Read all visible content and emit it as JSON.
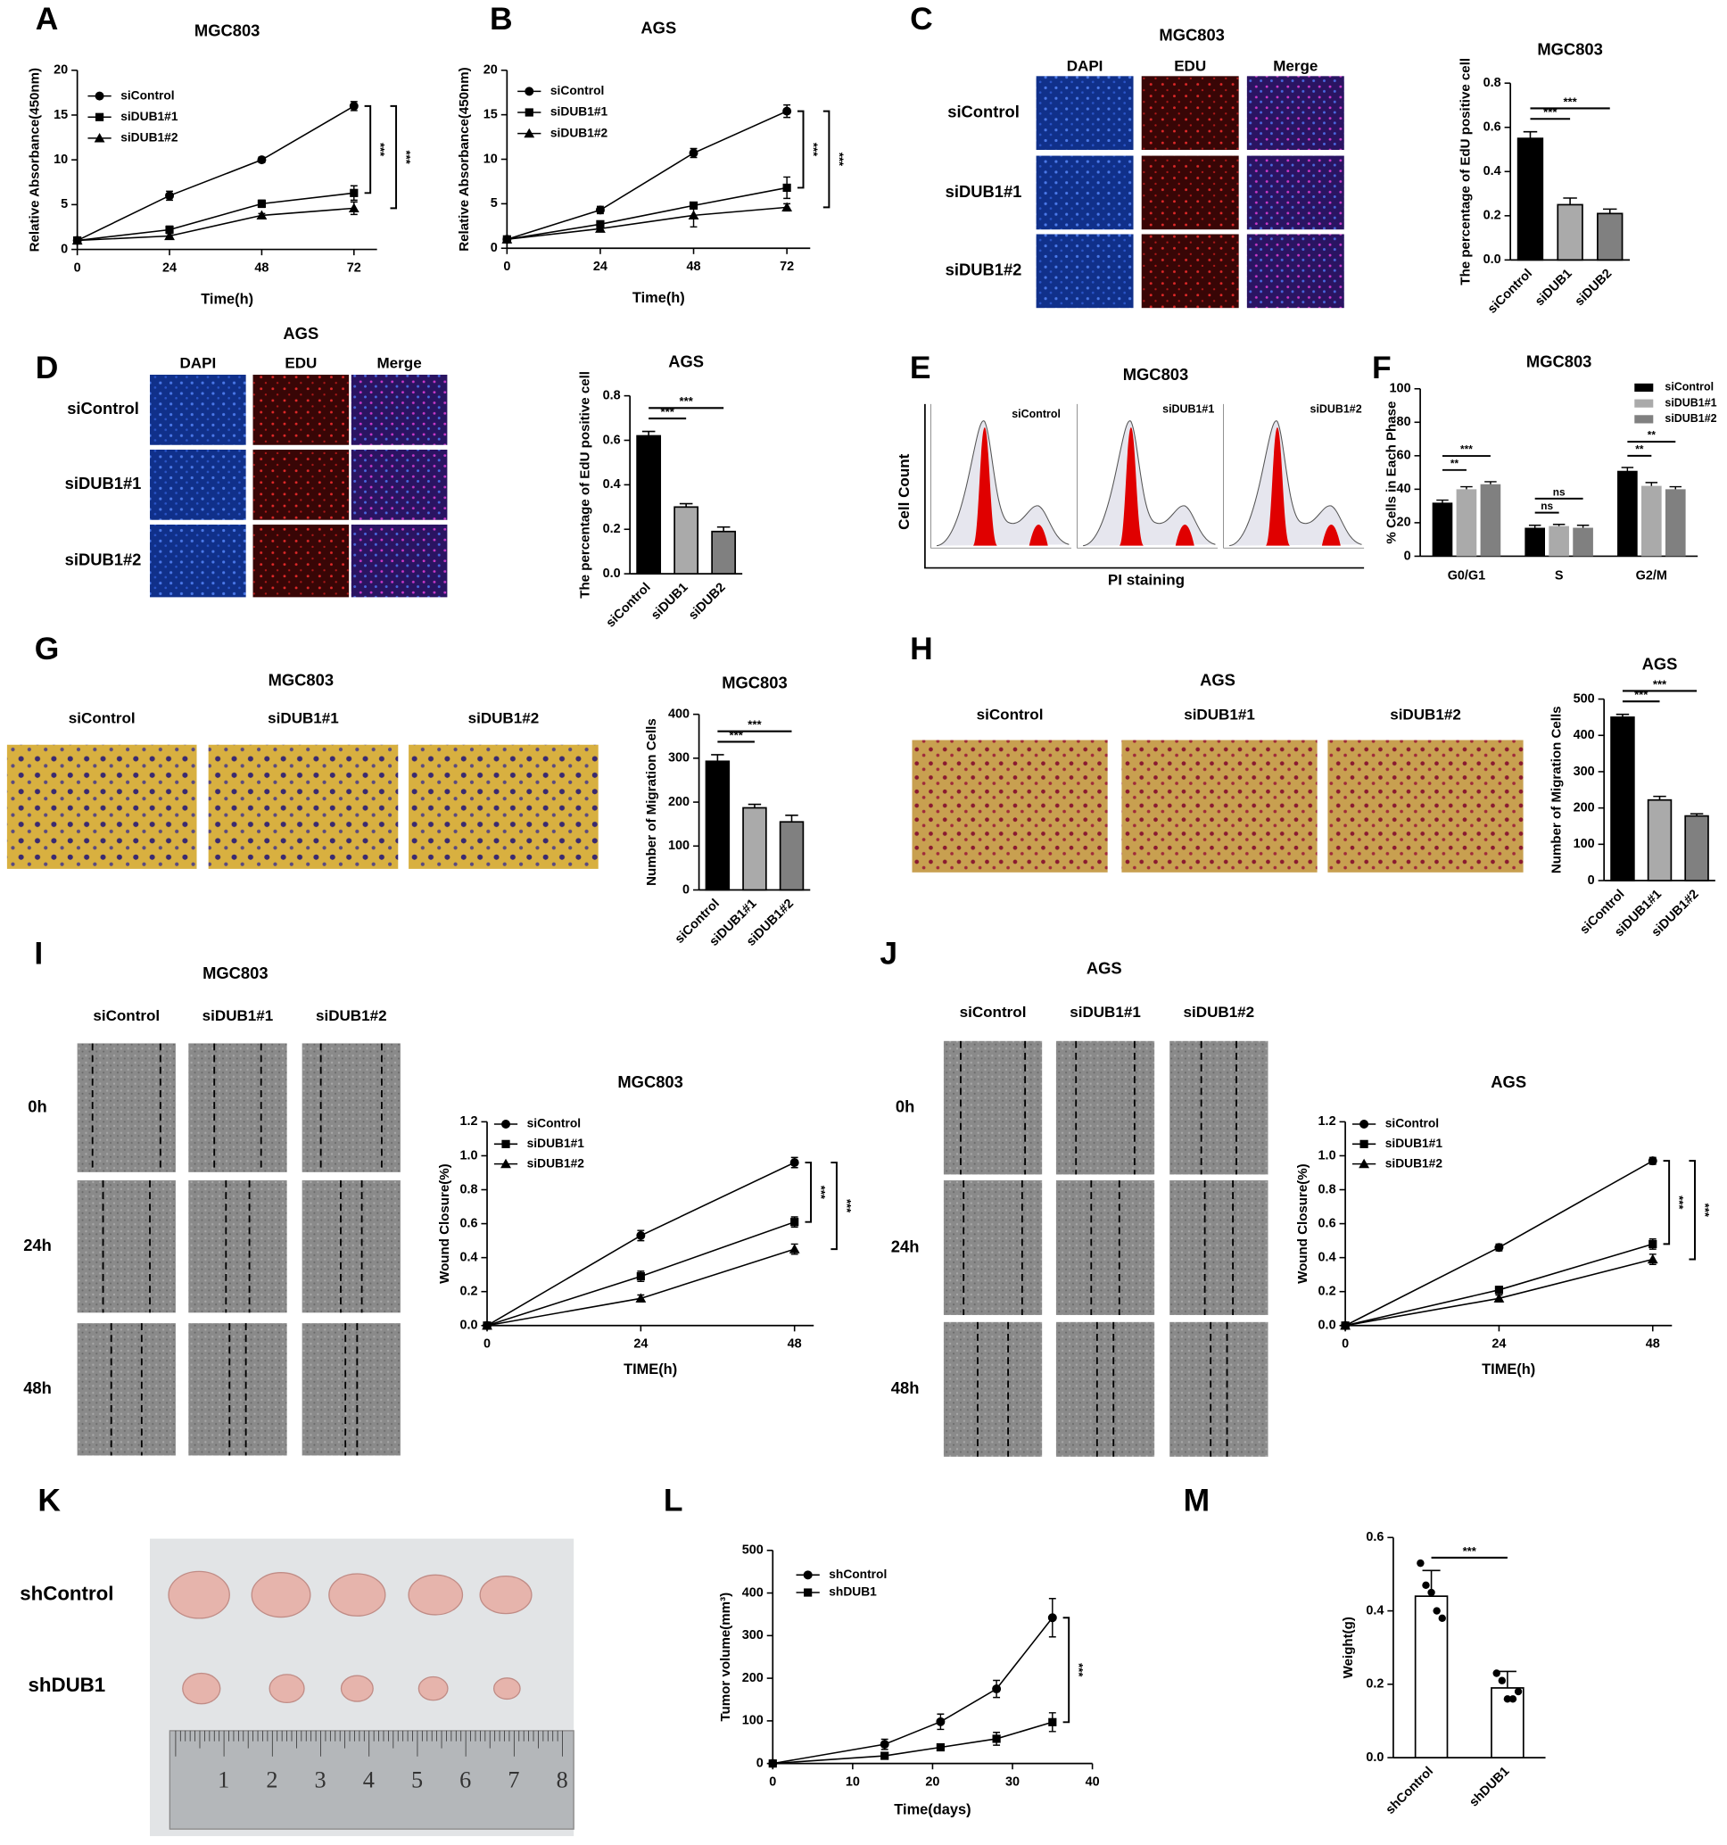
{
  "chart_data": [
    {
      "type": "line",
      "panel_label": "A",
      "title": "MGC803",
      "xlabel": "Time(h)",
      "ylabel": "Relative Absorbance(450nm)",
      "x": [
        0,
        24,
        48,
        72
      ],
      "xlim": [
        0,
        78
      ],
      "xticks": [
        0,
        24,
        48,
        72
      ],
      "ylim": [
        0,
        20
      ],
      "yticks": [
        0,
        5,
        10,
        15,
        20
      ],
      "series": [
        {
          "name": "siControl",
          "color": "#000000",
          "marker": "circle",
          "values": [
            1,
            6,
            10,
            16
          ],
          "errors": [
            0.1,
            0.5,
            0.3,
            0.5
          ]
        },
        {
          "name": "siDUB1#1",
          "color": "#000000",
          "marker": "square",
          "values": [
            1,
            2.2,
            5.1,
            6.3
          ],
          "errors": [
            0.1,
            0.4,
            0.4,
            0.8
          ]
        },
        {
          "name": "siDUB1#2",
          "color": "#000000",
          "marker": "triangle",
          "values": [
            1,
            1.5,
            3.8,
            4.6
          ],
          "errors": [
            0.1,
            0.3,
            0.2,
            0.7
          ]
        }
      ],
      "annotations": [
        "***",
        "***"
      ]
    },
    {
      "type": "line",
      "panel_label": "B",
      "title": "AGS",
      "xlabel": "Time(h)",
      "ylabel": "Relative Absorbance(450nm)",
      "x": [
        0,
        24,
        48,
        72
      ],
      "xlim": [
        0,
        78
      ],
      "xticks": [
        0,
        24,
        48,
        72
      ],
      "ylim": [
        0,
        20
      ],
      "yticks": [
        0,
        5,
        10,
        15,
        20
      ],
      "series": [
        {
          "name": "siControl",
          "color": "#000000",
          "marker": "circle",
          "values": [
            1,
            4.3,
            10.7,
            15.4
          ],
          "errors": [
            0.1,
            0.4,
            0.5,
            0.7
          ]
        },
        {
          "name": "siDUB1#1",
          "color": "#000000",
          "marker": "square",
          "values": [
            1,
            2.7,
            4.8,
            6.8
          ],
          "errors": [
            0.1,
            0.3,
            0.3,
            1.2
          ]
        },
        {
          "name": "siDUB1#2",
          "color": "#000000",
          "marker": "triangle",
          "values": [
            1,
            2.2,
            3.7,
            4.6
          ],
          "errors": [
            0.1,
            0.3,
            1.3,
            0.4
          ]
        }
      ],
      "annotations": [
        "***",
        "***"
      ]
    },
    {
      "type": "bar",
      "title": "MGC803",
      "ylabel": "The percentage of EdU positive cell",
      "categories": [
        "siControl",
        "siDUB1",
        "siDUB2"
      ],
      "values": [
        0.55,
        0.25,
        0.21
      ],
      "errors": [
        0.03,
        0.03,
        0.02
      ],
      "colors": [
        "#000000",
        "#aaaaaa",
        "#808080"
      ],
      "ylim": [
        0,
        0.8
      ],
      "yticks": [
        {
          "value": 0,
          "label": "0.0"
        },
        0.2,
        0.4,
        0.6,
        0.8
      ],
      "annotations": [
        "***",
        "***"
      ]
    },
    {
      "type": "bar",
      "title": "AGS",
      "ylabel": "The percentage of EdU positive cell",
      "categories": [
        "siControl",
        "siDUB1",
        "siDUB2"
      ],
      "values": [
        0.62,
        0.3,
        0.19
      ],
      "errors": [
        0.02,
        0.015,
        0.02
      ],
      "colors": [
        "#000000",
        "#aaaaaa",
        "#808080"
      ],
      "ylim": [
        0,
        0.8
      ],
      "yticks": [
        {
          "value": 0,
          "label": "0.0"
        },
        0.2,
        0.4,
        0.6,
        0.8
      ],
      "annotations": [
        "***",
        "***"
      ]
    },
    {
      "type": "grouped_bar",
      "panel_label": "F",
      "title": "MGC803",
      "ylabel": "% Cells in Each Phase",
      "categories": [
        "G0/G1",
        "S",
        "G2/M"
      ],
      "series": [
        {
          "name": "siControl",
          "color": "#000000",
          "values": [
            32,
            17,
            51
          ],
          "errors": [
            1.5,
            1.5,
            2
          ]
        },
        {
          "name": "siDUB1#1",
          "color": "#aaaaaa",
          "values": [
            40,
            18,
            42
          ],
          "errors": [
            1.5,
            1,
            2
          ]
        },
        {
          "name": "siDUB1#2",
          "color": "#808080",
          "values": [
            43,
            17,
            40
          ],
          "errors": [
            1.5,
            1.5,
            1.5
          ]
        }
      ],
      "ylim": [
        0,
        100
      ],
      "yticks": [
        0,
        20,
        40,
        60,
        80,
        100
      ],
      "annotations": [
        "**",
        "***",
        "ns",
        "ns",
        "**",
        "**"
      ]
    },
    {
      "type": "bar",
      "title": "MGC803",
      "ylabel": "Number of Migration Cells",
      "categories": [
        "siControl",
        "siDUB1#1",
        "siDUB1#2"
      ],
      "values": [
        293,
        187,
        155
      ],
      "errors": [
        15,
        8,
        15
      ],
      "colors": [
        "#000000",
        "#aaaaaa",
        "#808080"
      ],
      "ylim": [
        0,
        400
      ],
      "yticks": [
        0,
        100,
        200,
        300,
        400
      ],
      "annotations": [
        "***",
        "***"
      ]
    },
    {
      "type": "bar",
      "title": "AGS",
      "ylabel": "Number of Migration Cells",
      "categories": [
        "siControl",
        "siDUB1#1",
        "siDUB1#2"
      ],
      "values": [
        450,
        222,
        178
      ],
      "errors": [
        8,
        10,
        6
      ],
      "colors": [
        "#000000",
        "#aaaaaa",
        "#808080"
      ],
      "ylim": [
        0,
        500
      ],
      "yticks": [
        0,
        100,
        200,
        300,
        400,
        500
      ],
      "annotations": [
        "***",
        "***"
      ]
    },
    {
      "type": "line",
      "title": "MGC803",
      "xlabel": "TIME(h)",
      "ylabel": "Wound Closure(%)",
      "x": [
        0,
        24,
        48
      ],
      "xlim": [
        0,
        51
      ],
      "xticks": [
        0,
        24,
        48
      ],
      "ylim": [
        0,
        1.2
      ],
      "yticks": [
        {
          "value": 0,
          "label": "0.0"
        },
        0.2,
        0.4,
        0.6,
        0.8,
        {
          "value": 1,
          "label": "1.0"
        },
        1.2
      ],
      "series": [
        {
          "name": "siControl",
          "color": "#000000",
          "marker": "circle",
          "values": [
            0,
            0.53,
            0.96
          ],
          "errors": [
            0.01,
            0.03,
            0.03
          ]
        },
        {
          "name": "siDUB1#1",
          "color": "#000000",
          "marker": "square",
          "values": [
            0,
            0.29,
            0.61
          ],
          "errors": [
            0.01,
            0.03,
            0.03
          ]
        },
        {
          "name": "siDUB1#2",
          "color": "#000000",
          "marker": "triangle",
          "values": [
            0,
            0.16,
            0.45
          ],
          "errors": [
            0.01,
            0.02,
            0.03
          ]
        }
      ],
      "annotations": [
        "***",
        "***"
      ]
    },
    {
      "type": "line",
      "title": "AGS",
      "xlabel": "TIME(h)",
      "ylabel": "Wound Closure(%)",
      "x": [
        0,
        24,
        48
      ],
      "xlim": [
        0,
        51
      ],
      "xticks": [
        0,
        24,
        48
      ],
      "ylim": [
        0,
        1.2
      ],
      "yticks": [
        {
          "value": 0,
          "label": "0.0"
        },
        0.2,
        0.4,
        0.6,
        0.8,
        {
          "value": 1,
          "label": "1.0"
        },
        1.2
      ],
      "series": [
        {
          "name": "siControl",
          "color": "#000000",
          "marker": "circle",
          "values": [
            0,
            0.46,
            0.97
          ],
          "errors": [
            0.01,
            0.02,
            0.02
          ]
        },
        {
          "name": "siDUB1#1",
          "color": "#000000",
          "marker": "square",
          "values": [
            0,
            0.21,
            0.48
          ],
          "errors": [
            0.01,
            0.02,
            0.03
          ]
        },
        {
          "name": "siDUB1#2",
          "color": "#000000",
          "marker": "triangle",
          "values": [
            0,
            0.16,
            0.39
          ],
          "errors": [
            0.01,
            0.02,
            0.03
          ]
        }
      ],
      "annotations": [
        "***",
        "***"
      ]
    },
    {
      "type": "line",
      "panel_label": "L",
      "xlabel": "Time(days)",
      "ylabel": "Tumor volume(mm³)",
      "x": [
        0,
        14,
        21,
        28,
        35
      ],
      "xlim": [
        0,
        40
      ],
      "xticks": [
        0,
        10,
        20,
        30,
        40
      ],
      "ylim": [
        0,
        500
      ],
      "yticks": [
        0,
        100,
        200,
        300,
        400,
        500
      ],
      "series": [
        {
          "name": "shControl",
          "color": "#000000",
          "marker": "circle",
          "values": [
            0,
            45,
            98,
            175,
            342
          ],
          "errors": [
            0,
            12,
            18,
            20,
            45
          ]
        },
        {
          "name": "shDUB1",
          "color": "#000000",
          "marker": "square",
          "values": [
            0,
            18,
            38,
            58,
            97
          ],
          "errors": [
            0,
            5,
            6,
            15,
            22
          ]
        }
      ],
      "annotations": [
        "***"
      ]
    },
    {
      "type": "bar",
      "panel_label": "M",
      "ylabel": "Weight(g)",
      "categories": [
        "shControl",
        "shDUB1"
      ],
      "values": [
        0.44,
        0.19
      ],
      "errors": [
        0.07,
        0.045
      ],
      "colors": [
        "#ffffff",
        "#ffffff"
      ],
      "points": [
        [
          0.53,
          0.47,
          0.45,
          0.4,
          0.38
        ],
        [
          0.23,
          0.21,
          0.16,
          0.16,
          0.18
        ]
      ],
      "ylim": [
        0,
        0.6
      ],
      "yticks": [
        {
          "value": 0,
          "label": "0.0"
        },
        0.2,
        0.4,
        0.6
      ],
      "annotations": [
        "***"
      ]
    }
  ],
  "image_panels": [
    {
      "label": "C",
      "title": "MGC803",
      "columns": [
        "DAPI",
        "EDU",
        "Merge"
      ],
      "rows": [
        "siControl",
        "siDUB1#1",
        "siDUB1#2"
      ]
    },
    {
      "label": "D",
      "title": "AGS",
      "columns": [
        "DAPI",
        "EDU",
        "Merge"
      ],
      "rows": [
        "siControl",
        "siDUB1#1",
        "siDUB1#2"
      ]
    },
    {
      "label": "E",
      "title": "MGC803",
      "columns": [
        "siControl",
        "siDUB1#1",
        "siDUB1#2"
      ],
      "ylabel": "Cell Count",
      "xlabel": "PI staining"
    },
    {
      "label": "G",
      "title": "MGC803",
      "columns": [
        "siControl",
        "siDUB1#1",
        "siDUB1#2"
      ]
    },
    {
      "label": "H",
      "title": "AGS",
      "columns": [
        "siControl",
        "siDUB1#1",
        "siDUB1#2"
      ]
    },
    {
      "label": "I",
      "title": "MGC803",
      "columns": [
        "siControl",
        "siDUB1#1",
        "siDUB1#2"
      ],
      "rows": [
        "0h",
        "24h",
        "48h"
      ]
    },
    {
      "label": "J",
      "title": "AGS",
      "columns": [
        "siControl",
        "siDUB1#1",
        "siDUB1#2"
      ],
      "rows": [
        "0h",
        "24h",
        "48h"
      ]
    },
    {
      "label": "K",
      "rows": [
        "shControl",
        "shDUB1"
      ],
      "ruler": [
        1,
        2,
        3,
        4,
        5,
        6,
        7,
        8
      ]
    }
  ]
}
